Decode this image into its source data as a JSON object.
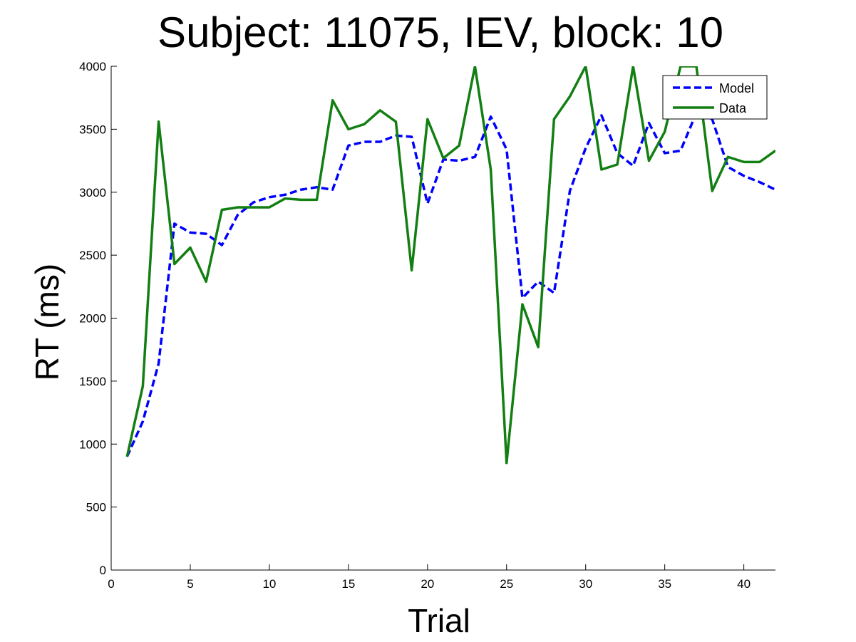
{
  "chart_data": {
    "type": "line",
    "title": "Subject: 11075, IEV, block: 10",
    "xlabel": "Trial",
    "ylabel": "RT (ms)",
    "xlim": [
      0,
      42
    ],
    "ylim": [
      0,
      4000
    ],
    "xticks": [
      0,
      5,
      10,
      15,
      20,
      25,
      30,
      35,
      40
    ],
    "yticks": [
      0,
      500,
      1000,
      1500,
      2000,
      2500,
      3000,
      3500,
      4000
    ],
    "grid": false,
    "legend_position": "top-right",
    "x": [
      1,
      2,
      3,
      4,
      5,
      6,
      7,
      8,
      9,
      10,
      11,
      12,
      13,
      14,
      15,
      16,
      17,
      18,
      19,
      20,
      21,
      22,
      23,
      24,
      25,
      26,
      27,
      28,
      29,
      30,
      31,
      32,
      33,
      34,
      35,
      36,
      37,
      38,
      39,
      40,
      41,
      42
    ],
    "series": [
      {
        "name": "Model",
        "color": "#0000ff",
        "style": "dashed",
        "values": [
          900,
          1180,
          1640,
          2750,
          2680,
          2670,
          2580,
          2820,
          2920,
          2960,
          2980,
          3020,
          3040,
          3020,
          3370,
          3400,
          3400,
          3450,
          3440,
          2910,
          3260,
          3250,
          3280,
          3600,
          3340,
          2160,
          2290,
          2200,
          3010,
          3350,
          3610,
          3310,
          3210,
          3550,
          3310,
          3330,
          3630,
          3580,
          3200,
          3130,
          3080,
          3020
        ]
      },
      {
        "name": "Data",
        "color": "#127f12",
        "style": "solid",
        "values": [
          900,
          1460,
          3560,
          2430,
          2560,
          2290,
          2860,
          2880,
          2880,
          2880,
          2950,
          2940,
          2940,
          3730,
          3500,
          3540,
          3650,
          3560,
          2380,
          3580,
          3270,
          3370,
          4000,
          3180,
          850,
          2110,
          1770,
          3580,
          3760,
          4000,
          3180,
          3220,
          4000,
          3250,
          3480,
          4000,
          4000,
          3010,
          3280,
          3240,
          3240,
          3330
        ]
      }
    ]
  }
}
